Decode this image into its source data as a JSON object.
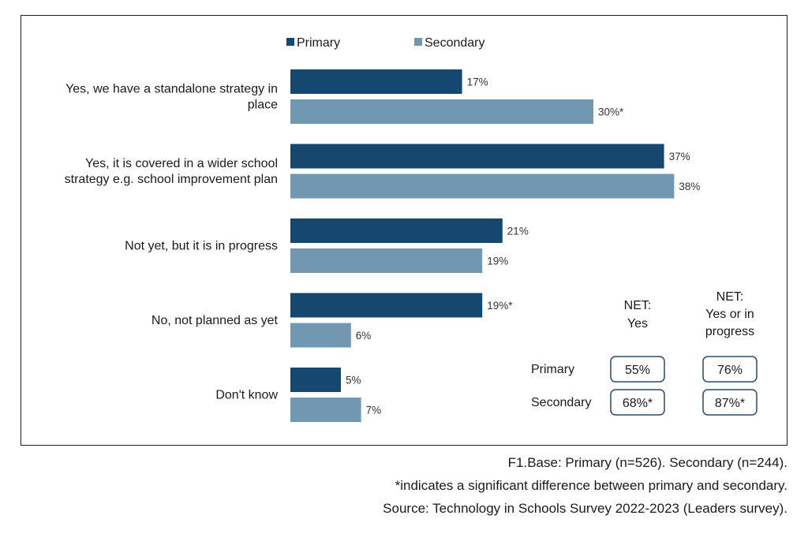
{
  "chart_data": {
    "type": "bar",
    "orientation": "horizontal",
    "categories": [
      [
        "Yes, we have a standalone strategy in",
        "place"
      ],
      [
        "Yes, it is covered in a wider school",
        "strategy e.g. school improvement plan"
      ],
      [
        "Not yet, but it is in progress"
      ],
      [
        "No, not planned as yet"
      ],
      [
        "Don't know"
      ]
    ],
    "series": [
      {
        "name": "Primary",
        "color": "#16486f",
        "values": [
          17,
          37,
          21,
          19,
          5
        ],
        "labels": [
          "17%",
          "37%",
          "21%",
          "19%*",
          "5%"
        ]
      },
      {
        "name": "Secondary",
        "color": "#7197b1",
        "values": [
          30,
          38,
          19,
          6,
          7
        ],
        "labels": [
          "30%*",
          "38%",
          "19%",
          "6%",
          "7%"
        ]
      }
    ],
    "xlim": [
      0,
      40
    ],
    "grid": false,
    "legend_position": "top"
  },
  "net_table": {
    "headers": [
      [
        "NET:",
        "Yes"
      ],
      [
        "NET:",
        "Yes or in",
        "progress"
      ]
    ],
    "rows": [
      {
        "label": "Primary",
        "values": [
          "55%",
          "76%"
        ]
      },
      {
        "label": "Secondary",
        "values": [
          "68%*",
          "87%*"
        ]
      }
    ]
  },
  "footnotes": {
    "base": "F1.Base: Primary (n=526). Secondary (n=244).",
    "significance": "*indicates a significant difference between primary and secondary.",
    "source": "Source: Technology in Schools Survey 2022-2023 (Leaders survey)."
  }
}
